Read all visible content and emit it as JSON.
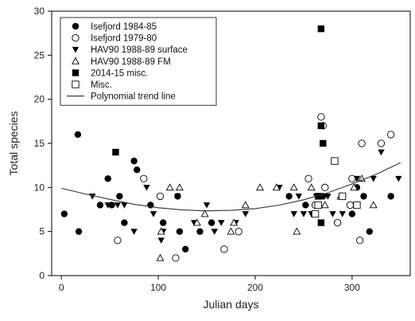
{
  "chart_data": {
    "type": "scatter",
    "title": "",
    "xlabel": "Julian days",
    "ylabel": "Total species",
    "xlim": [
      -10,
      360
    ],
    "ylim": [
      0,
      30
    ],
    "xticks": [
      0,
      100,
      200,
      300
    ],
    "yticks": [
      0,
      5,
      10,
      15,
      20,
      25,
      30
    ],
    "grid": false,
    "legend_position": "top-left",
    "series": [
      {
        "name": "Isefjord 1984-85",
        "marker": "filled-circle",
        "points": [
          [
            3,
            7
          ],
          [
            17,
            16
          ],
          [
            18,
            5
          ],
          [
            40,
            8
          ],
          [
            48,
            11
          ],
          [
            52,
            8
          ],
          [
            60,
            9
          ],
          [
            65,
            6
          ],
          [
            75,
            13
          ],
          [
            78,
            12
          ],
          [
            92,
            8
          ],
          [
            105,
            6
          ],
          [
            120,
            9
          ],
          [
            122,
            5
          ],
          [
            128,
            3
          ],
          [
            143,
            5
          ],
          [
            155,
            6
          ],
          [
            235,
            9
          ],
          [
            252,
            8
          ],
          [
            260,
            7
          ],
          [
            265,
            8
          ],
          [
            270,
            9
          ],
          [
            300,
            7
          ],
          [
            305,
            10
          ],
          [
            312,
            9
          ],
          [
            318,
            5
          ],
          [
            340,
            9
          ]
        ]
      },
      {
        "name": "Isefjord 1979-80",
        "marker": "open-circle",
        "points": [
          [
            58,
            4
          ],
          [
            85,
            11
          ],
          [
            102,
            9
          ],
          [
            118,
            2
          ],
          [
            168,
            3
          ],
          [
            183,
            5
          ],
          [
            255,
            11
          ],
          [
            262,
            8
          ],
          [
            268,
            18
          ],
          [
            270,
            17
          ],
          [
            272,
            10
          ],
          [
            285,
            6
          ],
          [
            290,
            9
          ],
          [
            298,
            8
          ],
          [
            300,
            11
          ],
          [
            308,
            4
          ],
          [
            310,
            15
          ],
          [
            330,
            15
          ],
          [
            340,
            16
          ]
        ]
      },
      {
        "name": "HAV90 1988-89 surface",
        "marker": "filled-triangle-down",
        "points": [
          [
            32,
            9
          ],
          [
            48,
            8
          ],
          [
            58,
            8
          ],
          [
            65,
            8
          ],
          [
            75,
            5
          ],
          [
            88,
            10
          ],
          [
            95,
            7
          ],
          [
            103,
            4
          ],
          [
            105,
            5
          ],
          [
            120,
            9
          ],
          [
            137,
            6
          ],
          [
            150,
            8
          ],
          [
            158,
            5
          ],
          [
            165,
            6
          ],
          [
            180,
            6
          ],
          [
            190,
            7
          ],
          [
            225,
            10
          ],
          [
            240,
            7
          ],
          [
            245,
            9
          ],
          [
            250,
            7
          ],
          [
            258,
            7
          ],
          [
            263,
            9
          ],
          [
            275,
            9
          ],
          [
            280,
            7
          ],
          [
            290,
            7
          ],
          [
            305,
            11
          ],
          [
            322,
            11
          ],
          [
            330,
            14
          ],
          [
            348,
            11
          ]
        ]
      },
      {
        "name": "HAV90 1988-89 FM",
        "marker": "open-triangle-up",
        "points": [
          [
            102,
            2
          ],
          [
            103,
            5
          ],
          [
            112,
            10
          ],
          [
            122,
            10
          ],
          [
            140,
            6
          ],
          [
            148,
            7
          ],
          [
            175,
            5
          ],
          [
            178,
            6
          ],
          [
            190,
            8
          ],
          [
            205,
            10
          ],
          [
            222,
            10
          ],
          [
            240,
            10
          ],
          [
            243,
            5
          ],
          [
            258,
            10
          ],
          [
            262,
            7
          ],
          [
            272,
            8
          ],
          [
            288,
            9
          ],
          [
            302,
            10
          ],
          [
            310,
            11
          ],
          [
            322,
            8
          ]
        ]
      },
      {
        "name": "2014-15 misc.",
        "marker": "filled-square",
        "points": [
          [
            56,
            14
          ],
          [
            268,
            28
          ],
          [
            268,
            17
          ],
          [
            270,
            15
          ],
          [
            265,
            9
          ],
          [
            268,
            6
          ]
        ]
      },
      {
        "name": "Misc.",
        "marker": "open-square",
        "points": [
          [
            262,
            7
          ],
          [
            265,
            8
          ],
          [
            282,
            13
          ],
          [
            290,
            9
          ],
          [
            305,
            8
          ]
        ]
      },
      {
        "name": "Polynomial trend line",
        "marker": "line",
        "points": [
          [
            0,
            9.9
          ],
          [
            25,
            9.25
          ],
          [
            50,
            8.65
          ],
          [
            75,
            8.1
          ],
          [
            100,
            7.7
          ],
          [
            125,
            7.45
          ],
          [
            150,
            7.35
          ],
          [
            175,
            7.4
          ],
          [
            200,
            7.6
          ],
          [
            225,
            8.0
          ],
          [
            250,
            8.6
          ],
          [
            275,
            9.4
          ],
          [
            300,
            10.4
          ],
          [
            325,
            11.5
          ],
          [
            350,
            12.8
          ]
        ]
      }
    ]
  }
}
